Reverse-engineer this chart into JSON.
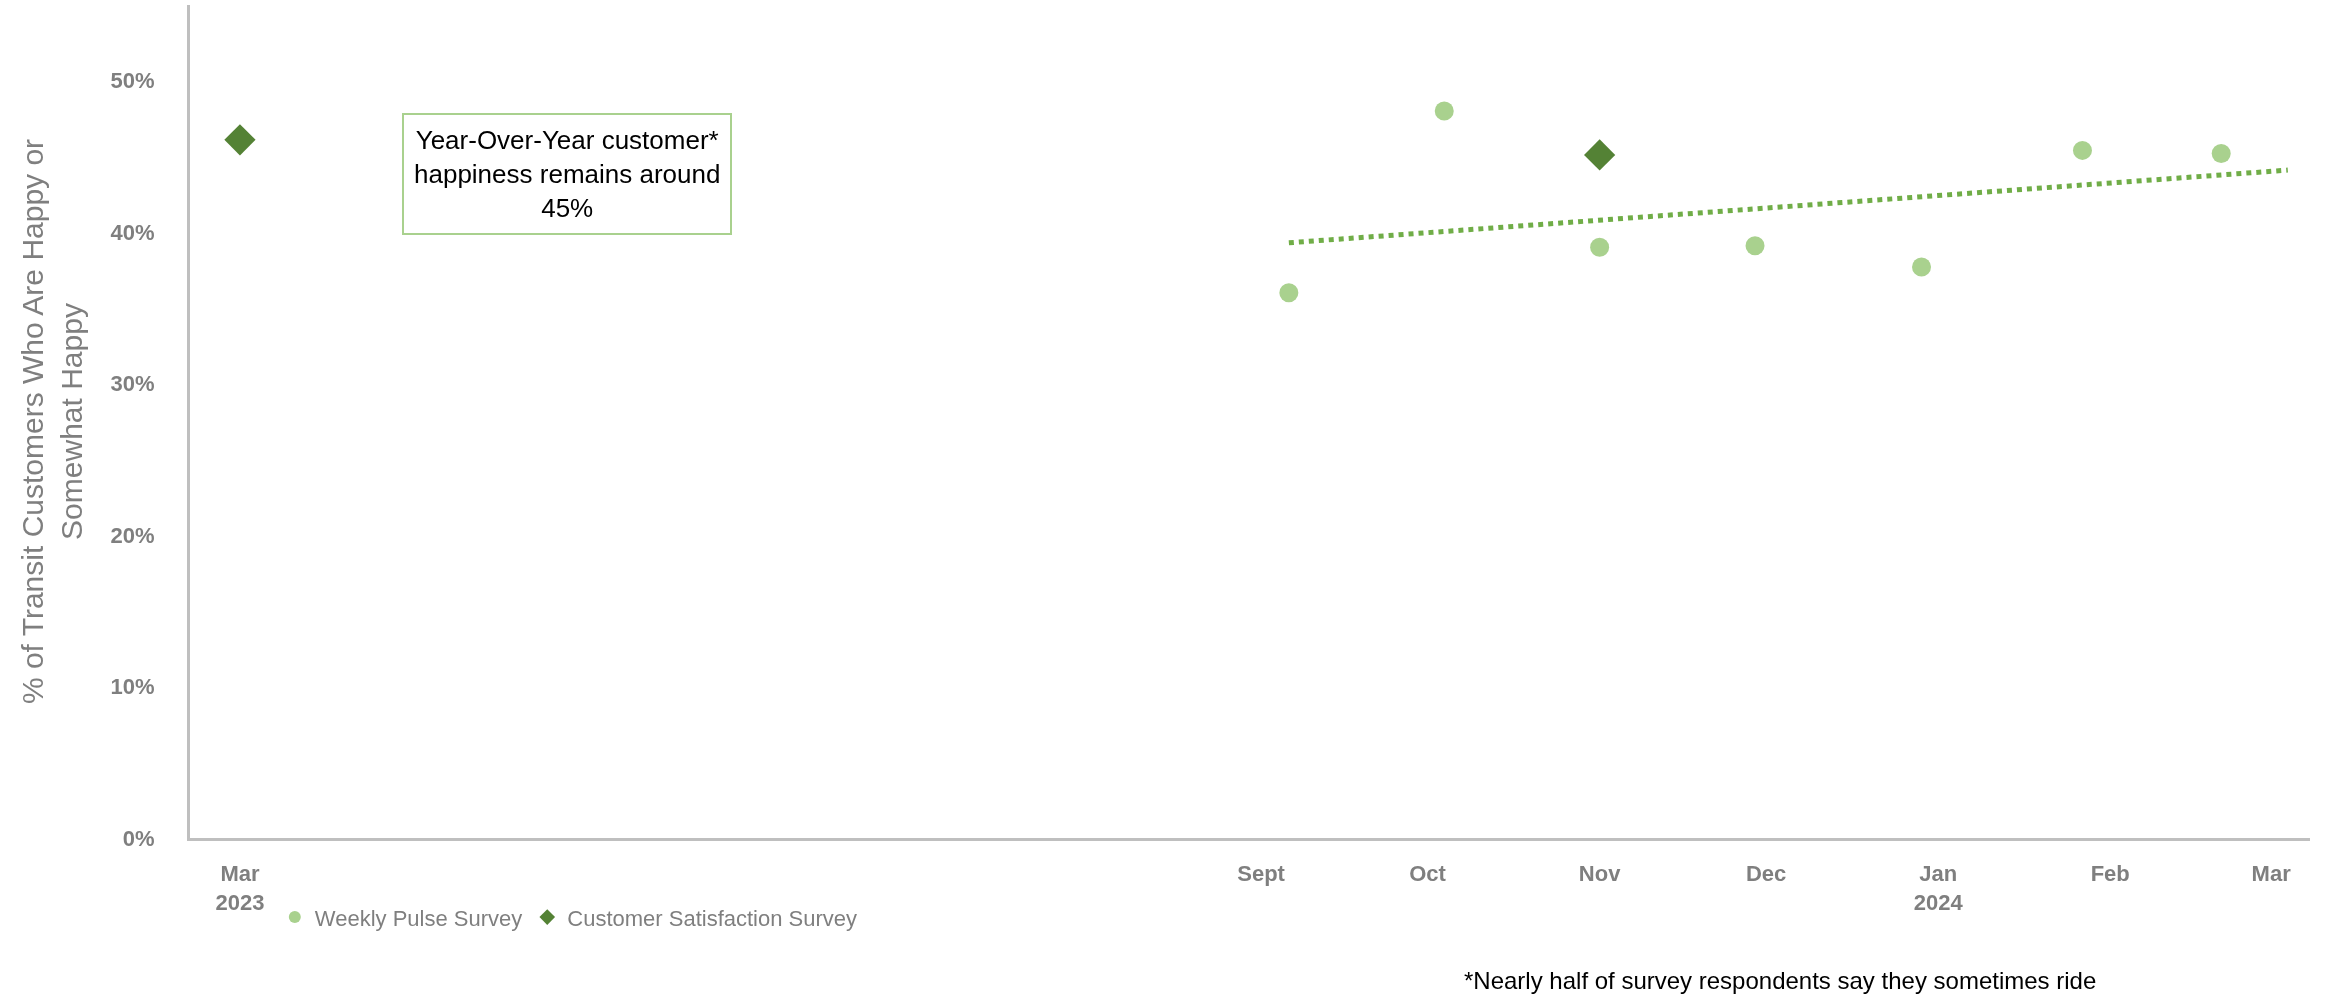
{
  "chart_data": {
    "type": "scatter",
    "ylabel": "% of Transit Customers Who Are Happy or\nSomewhat Happy",
    "annotations": [
      "Year-Over-Year customer*\nhappiness remains around\n45%",
      "*Nearly half of survey respondents say they sometimes ride"
    ],
    "series": [
      {
        "name": "Weekly Pulse Survey",
        "color": "#a9d18e",
        "marker": "circle",
        "x": [
          "2023-09-06",
          "2023-10-04",
          "2023-11-01",
          "2023-11-29",
          "2023-12-29",
          "2024-01-27",
          "2024-02-21"
        ],
        "values": [
          36.0,
          48.0,
          39.0,
          39.1,
          37.7,
          45.4,
          45.2
        ]
      },
      {
        "name": "Customer Satisfaction Survey",
        "color": "#548235",
        "marker": "diamond",
        "x": [
          "2023-03-01",
          "2023-11-01"
        ],
        "values": [
          46.1,
          45.1
        ]
      },
      {
        "type": "line",
        "color": "#70ad47",
        "line_style": "dotted",
        "marker": "none",
        "x": [
          "2023-09-06",
          "2024-03-04"
        ],
        "values": [
          39.3,
          44.1
        ]
      }
    ],
    "xlim": [
      "2023-02-20",
      "2024-03-08"
    ],
    "xticks": [
      {
        "value": "2023-03-01",
        "label": "Mar\n2023"
      },
      {
        "value": "2023-09-01",
        "label": "Sept"
      },
      {
        "value": "2023-10-01",
        "label": "Oct"
      },
      {
        "value": "2023-11-01",
        "label": "Nov"
      },
      {
        "value": "2023-12-01",
        "label": "Dec"
      },
      {
        "value": "2024-01-01",
        "label": "Jan\n2024"
      },
      {
        "value": "2024-02-01",
        "label": "Feb"
      },
      {
        "value": "2024-03-01",
        "label": "Mar"
      }
    ],
    "ylim": [
      0,
      55
    ],
    "yticks": [
      {
        "value": 0,
        "label": "0%"
      },
      {
        "value": 10,
        "label": "10%"
      },
      {
        "value": 20,
        "label": "20%"
      },
      {
        "value": 30,
        "label": "30%"
      },
      {
        "value": 40,
        "label": "40%"
      },
      {
        "value": 50,
        "label": "50%"
      }
    ],
    "legend": "bottom"
  }
}
